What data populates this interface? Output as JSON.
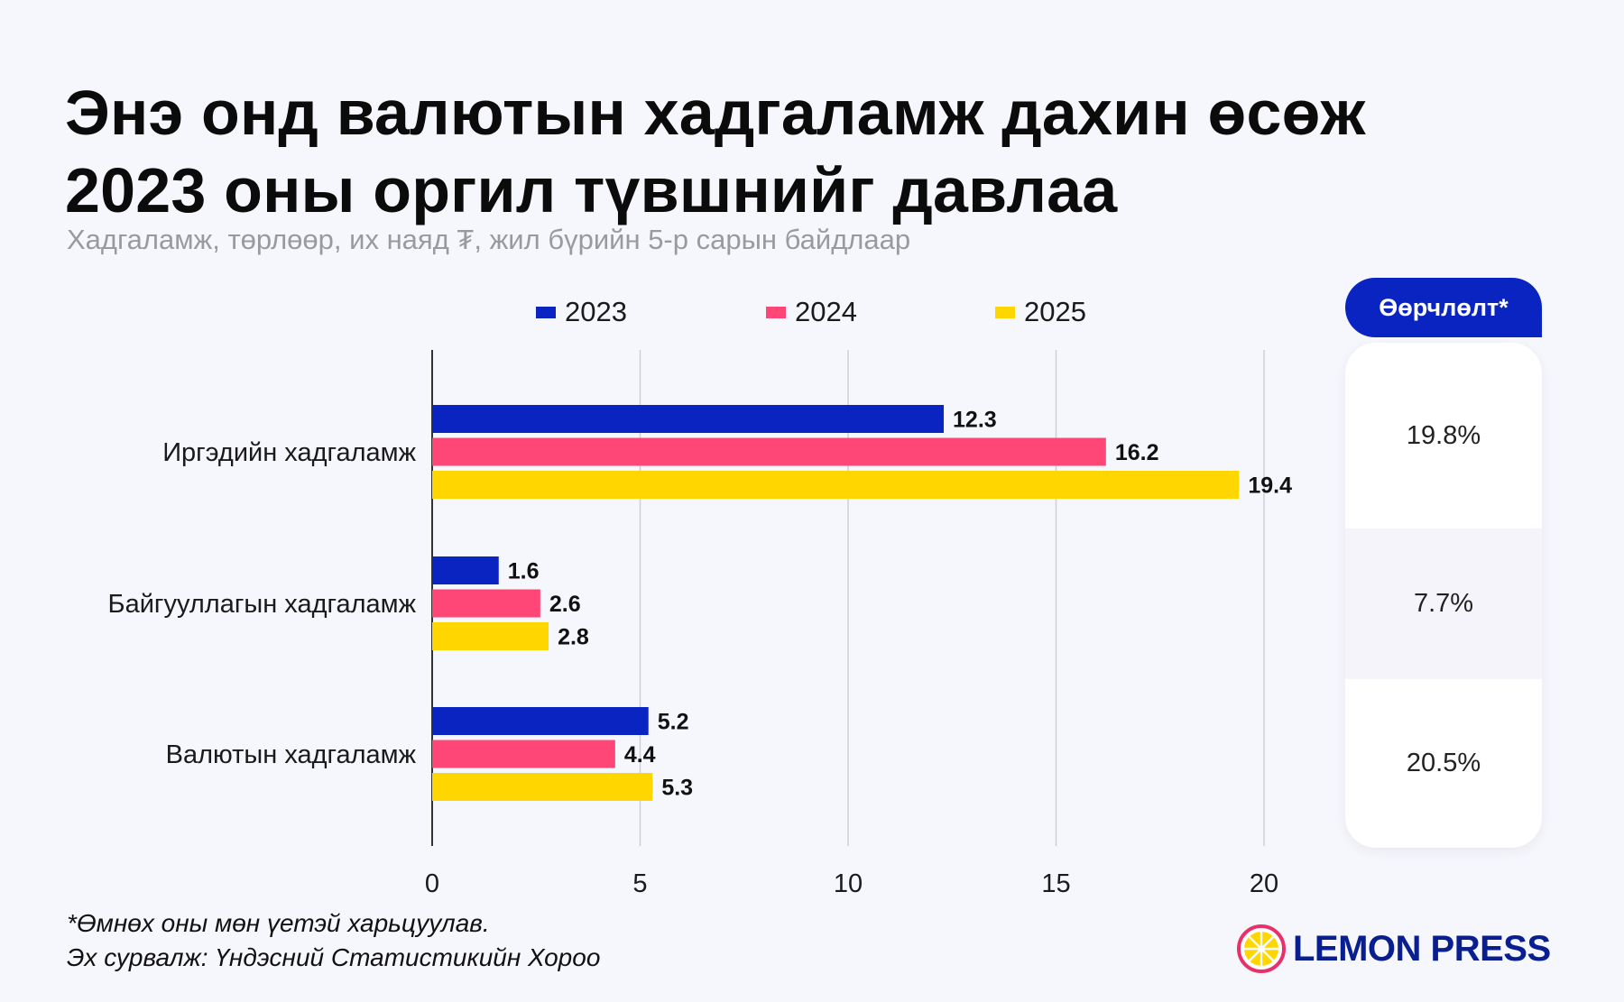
{
  "header": {
    "title_line1": "Энэ онд валютын хадгаламж дахин өсөж",
    "title_line2": "2023 оны оргил түвшнийг давлаа",
    "subtitle": "Хадгаламж, төрлөөр, их наяд ₮, жил бүрийн 5-р сарын байдлаар"
  },
  "chart_data": {
    "type": "bar",
    "orientation": "horizontal",
    "categories": [
      "Иргэдийн хадгаламж",
      "Байгууллагын хадгаламж",
      "Валютын хадгаламж"
    ],
    "series": [
      {
        "name": "2023",
        "color": "#0a24c2",
        "values": [
          12.3,
          1.6,
          5.2
        ]
      },
      {
        "name": "2024",
        "color": "#ff4777",
        "values": [
          16.2,
          2.6,
          4.4
        ]
      },
      {
        "name": "2025",
        "color": "#ffd600",
        "values": [
          19.4,
          2.8,
          5.3
        ]
      }
    ],
    "xlim": [
      0,
      20
    ],
    "xticks": [
      0,
      5,
      10,
      15,
      20
    ],
    "grid": true,
    "legend_position": "top"
  },
  "change_panel": {
    "header": "Өөрчлөлт*",
    "values": [
      "19.8%",
      "7.7%",
      "20.5%"
    ]
  },
  "footnote": {
    "line1": "*Өмнөх оны мөн үетэй харьцуулав.",
    "line2": "Эх сурвалж: Үндэсний Статистикийн Хороо"
  },
  "brand": {
    "name": "LEMON PRESS",
    "icon": "lemon-slice-icon",
    "primary_color": "#0a1f8f",
    "accent_color": "#e8306a"
  }
}
